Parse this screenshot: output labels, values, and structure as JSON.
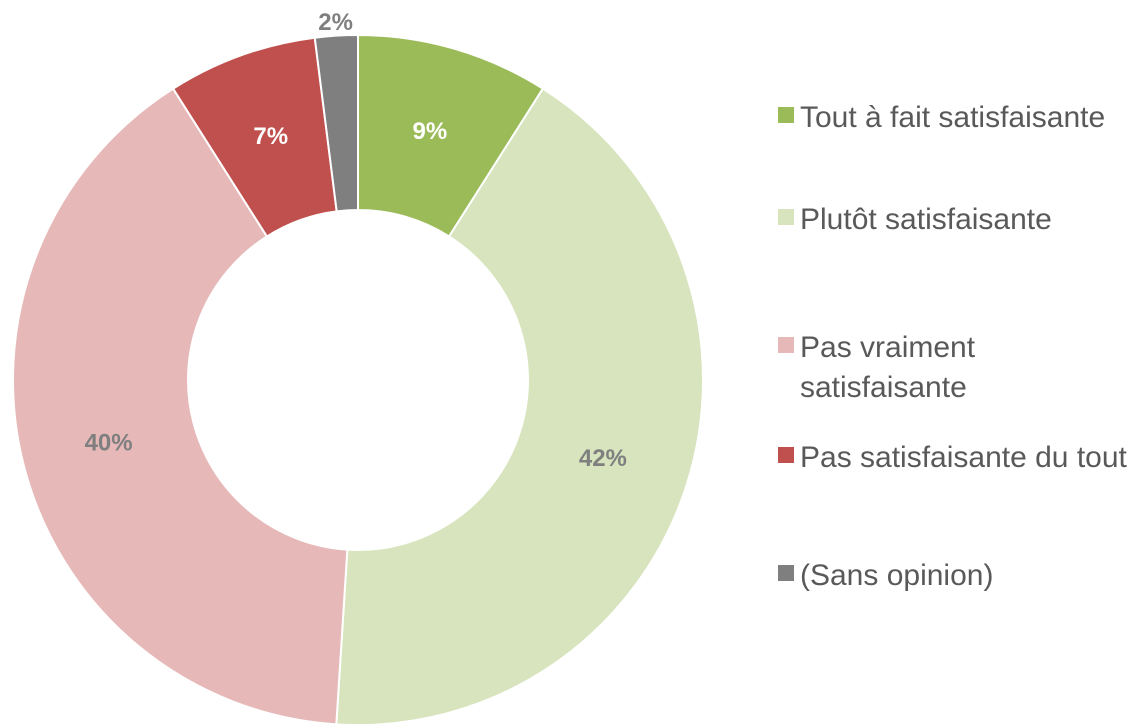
{
  "chart_data": {
    "type": "donut",
    "categories": [
      "Tout à fait satisfaisante",
      "Plutôt satisfaisante",
      "Pas vraiment satisfaisante",
      "Pas satisfaisante du tout",
      "(Sans opinion)"
    ],
    "values": [
      9,
      42,
      40,
      7,
      2
    ],
    "value_labels": [
      "9%",
      "42%",
      "40%",
      "7%",
      "2%"
    ],
    "colors": [
      "#9bbb59",
      "#d7e4bd",
      "#e6b9b8",
      "#c0504d",
      "#7f7f7f"
    ],
    "label_colors": [
      "#ffffff",
      "#7f7f7f",
      "#7f7f7f",
      "#ffffff",
      "#7f7f7f"
    ],
    "legend": "right"
  }
}
